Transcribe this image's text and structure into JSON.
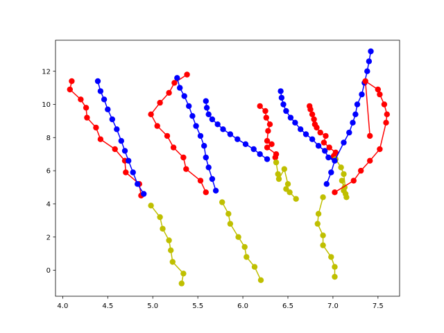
{
  "chart_data": {
    "type": "line",
    "title": "",
    "xlabel": "",
    "ylabel": "",
    "xlim": [
      3.92,
      7.74
    ],
    "ylim": [
      -1.57,
      13.87
    ],
    "grid": false,
    "x_ticks": [
      4.0,
      4.5,
      5.0,
      5.5,
      6.0,
      6.5,
      7.0,
      7.5
    ],
    "x_tick_labels": [
      "4.0",
      "4.5",
      "5.0",
      "5.5",
      "6.0",
      "6.5",
      "7.0",
      "7.5"
    ],
    "y_ticks": [
      0,
      2,
      4,
      6,
      8,
      10,
      12
    ],
    "y_tick_labels": [
      "0",
      "2",
      "4",
      "6",
      "8",
      "10",
      "12"
    ],
    "series": [
      {
        "color": "#ff0000",
        "points": [
          [
            4.1,
            11.4
          ],
          [
            4.08,
            10.9
          ],
          [
            4.2,
            10.3
          ],
          [
            4.26,
            9.8
          ],
          [
            4.27,
            9.2
          ],
          [
            4.37,
            8.6
          ],
          [
            4.42,
            7.9
          ],
          [
            4.58,
            7.3
          ],
          [
            4.69,
            6.6
          ],
          [
            4.7,
            5.9
          ],
          [
            4.85,
            5.2
          ],
          [
            4.87,
            4.5
          ]
        ]
      },
      {
        "color": "#0000ff",
        "points": [
          [
            4.39,
            11.4
          ],
          [
            4.42,
            10.8
          ],
          [
            4.46,
            10.3
          ],
          [
            4.5,
            9.7
          ],
          [
            4.55,
            9.1
          ],
          [
            4.6,
            8.5
          ],
          [
            4.65,
            7.8
          ],
          [
            4.69,
            7.2
          ],
          [
            4.73,
            6.6
          ],
          [
            4.78,
            5.9
          ],
          [
            4.83,
            5.2
          ],
          [
            4.9,
            4.6
          ]
        ]
      },
      {
        "color": "#bfbf00",
        "points": [
          [
            4.98,
            3.9
          ],
          [
            5.08,
            3.2
          ],
          [
            5.11,
            2.5
          ],
          [
            5.18,
            1.8
          ],
          [
            5.2,
            1.2
          ],
          [
            5.22,
            0.5
          ],
          [
            5.34,
            -0.2
          ],
          [
            5.32,
            -0.8
          ]
        ]
      },
      {
        "color": "#ff0000",
        "points": [
          [
            5.38,
            11.8
          ],
          [
            5.24,
            11.3
          ],
          [
            5.18,
            10.7
          ],
          [
            5.08,
            10.1
          ],
          [
            4.98,
            9.4
          ],
          [
            5.05,
            8.7
          ],
          [
            5.16,
            8.1
          ],
          [
            5.23,
            7.4
          ],
          [
            5.34,
            6.8
          ],
          [
            5.37,
            6.1
          ],
          [
            5.53,
            5.4
          ],
          [
            5.59,
            4.7
          ]
        ]
      },
      {
        "color": "#0000ff",
        "points": [
          [
            5.27,
            11.6
          ],
          [
            5.3,
            11.0
          ],
          [
            5.35,
            10.5
          ],
          [
            5.4,
            9.9
          ],
          [
            5.44,
            9.3
          ],
          [
            5.48,
            8.7
          ],
          [
            5.53,
            8.1
          ],
          [
            5.57,
            7.5
          ],
          [
            5.59,
            6.8
          ],
          [
            5.62,
            6.2
          ],
          [
            5.66,
            5.5
          ],
          [
            5.7,
            4.8
          ]
        ]
      },
      {
        "color": "#bfbf00",
        "points": [
          [
            5.77,
            4.1
          ],
          [
            5.84,
            3.4
          ],
          [
            5.86,
            2.8
          ],
          [
            5.95,
            2.0
          ],
          [
            6.02,
            1.4
          ],
          [
            6.04,
            0.8
          ],
          [
            6.13,
            0.2
          ],
          [
            6.2,
            -0.6
          ]
        ]
      },
      {
        "color": "#0000ff",
        "points": [
          [
            5.59,
            10.2
          ],
          [
            5.6,
            9.8
          ],
          [
            5.62,
            9.4
          ],
          [
            5.66,
            9.1
          ],
          [
            5.72,
            8.8
          ],
          [
            5.78,
            8.5
          ],
          [
            5.86,
            8.2
          ],
          [
            5.94,
            7.9
          ],
          [
            6.03,
            7.6
          ],
          [
            6.12,
            7.3
          ],
          [
            6.19,
            7.0
          ],
          [
            6.27,
            6.7
          ]
        ]
      },
      {
        "color": "#ff0000",
        "points": [
          [
            6.19,
            9.9
          ],
          [
            6.25,
            9.6
          ],
          [
            6.26,
            9.2
          ],
          [
            6.3,
            8.8
          ],
          [
            6.28,
            8.4
          ],
          [
            6.27,
            7.8
          ],
          [
            6.32,
            7.6
          ],
          [
            6.27,
            7.4
          ],
          [
            6.37,
            7.0
          ],
          [
            6.36,
            6.8
          ]
        ]
      },
      {
        "color": "#bfbf00",
        "points": [
          [
            6.37,
            6.5
          ],
          [
            6.39,
            5.8
          ],
          [
            6.4,
            5.5
          ],
          [
            6.46,
            6.1
          ],
          [
            6.5,
            5.2
          ],
          [
            6.48,
            4.9
          ],
          [
            6.52,
            4.7
          ],
          [
            6.59,
            4.3
          ]
        ]
      },
      {
        "color": "#0000ff",
        "points": [
          [
            6.42,
            10.8
          ],
          [
            6.43,
            10.4
          ],
          [
            6.45,
            10.0
          ],
          [
            6.48,
            9.6
          ],
          [
            6.53,
            9.2
          ],
          [
            6.58,
            8.9
          ],
          [
            6.64,
            8.5
          ],
          [
            6.7,
            8.2
          ],
          [
            6.77,
            7.9
          ],
          [
            6.84,
            7.5
          ],
          [
            6.91,
            7.2
          ],
          [
            6.95,
            6.8
          ],
          [
            7.0,
            6.8
          ]
        ]
      },
      {
        "color": "#ff0000",
        "points": [
          [
            6.74,
            9.9
          ],
          [
            6.75,
            9.7
          ],
          [
            6.77,
            9.4
          ],
          [
            6.79,
            9.1
          ],
          [
            6.8,
            8.8
          ],
          [
            6.82,
            8.6
          ],
          [
            6.86,
            8.3
          ],
          [
            6.92,
            8.1
          ],
          [
            6.9,
            7.7
          ],
          [
            6.96,
            7.4
          ],
          [
            7.03,
            7.1
          ],
          [
            7.01,
            6.9
          ]
        ]
      },
      {
        "color": "#bfbf00",
        "points": [
          [
            6.89,
            4.4
          ],
          [
            6.84,
            3.4
          ],
          [
            6.83,
            2.8
          ],
          [
            6.89,
            2.1
          ],
          [
            6.89,
            1.5
          ],
          [
            6.98,
            0.8
          ],
          [
            7.02,
            0.2
          ],
          [
            7.02,
            -0.4
          ]
        ]
      },
      {
        "color": "#bfbf00",
        "points": [
          [
            7.03,
            6.7
          ],
          [
            7.09,
            6.2
          ],
          [
            7.12,
            5.8
          ],
          [
            7.15,
            4.4
          ],
          [
            7.14,
            4.6
          ],
          [
            7.1,
            5.4
          ],
          [
            7.13,
            5.0
          ],
          [
            7.12,
            4.8
          ]
        ]
      },
      {
        "color": "#0000ff",
        "points": [
          [
            6.93,
            5.2
          ],
          [
            6.98,
            5.9
          ],
          [
            7.02,
            6.6
          ],
          [
            7.12,
            7.7
          ],
          [
            7.18,
            8.3
          ],
          [
            7.22,
            8.9
          ],
          [
            7.25,
            9.4
          ],
          [
            7.27,
            10.0
          ],
          [
            7.32,
            10.6
          ],
          [
            7.35,
            11.3
          ],
          [
            7.38,
            12.0
          ],
          [
            7.4,
            12.6
          ],
          [
            7.42,
            13.2
          ]
        ]
      },
      {
        "color": "#ff0000",
        "points": [
          [
            7.02,
            4.7
          ],
          [
            7.23,
            5.4
          ],
          [
            7.31,
            6.0
          ],
          [
            7.41,
            6.6
          ],
          [
            7.52,
            7.3
          ],
          [
            7.59,
            8.9
          ],
          [
            7.6,
            9.4
          ],
          [
            7.57,
            10.0
          ],
          [
            7.52,
            10.6
          ],
          [
            7.5,
            10.9
          ],
          [
            7.36,
            11.4
          ],
          [
            7.41,
            8.1
          ]
        ]
      }
    ]
  }
}
